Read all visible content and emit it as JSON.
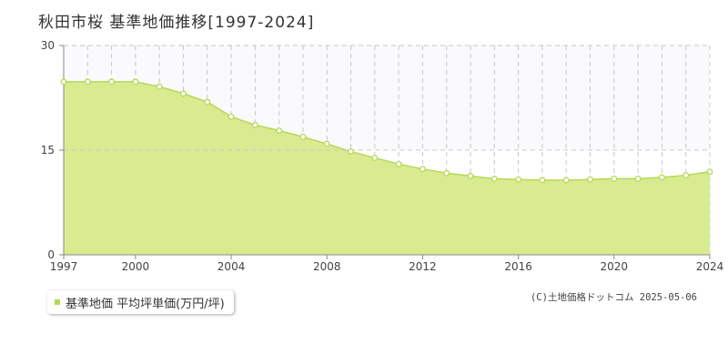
{
  "chart_data": {
    "type": "area",
    "title": "秋田市桜 基準地価推移[1997-2024]",
    "xlabel": "",
    "ylabel": "",
    "x": [
      1997,
      1998,
      1999,
      2000,
      2001,
      2002,
      2003,
      2004,
      2005,
      2006,
      2007,
      2008,
      2009,
      2010,
      2011,
      2012,
      2013,
      2014,
      2015,
      2016,
      2017,
      2018,
      2019,
      2020,
      2021,
      2022,
      2023,
      2024
    ],
    "xlim": [
      1997,
      2024
    ],
    "x_ticks": [
      "1997",
      "2000",
      "2004",
      "2008",
      "2012",
      "2016",
      "2020",
      "2024"
    ],
    "ylim": [
      0,
      30
    ],
    "y_ticks": [
      "0",
      "15",
      "30"
    ],
    "grid": true,
    "series": [
      {
        "name": "基準地価 平均坪単価(万円/坪)",
        "color": "#d9eb91",
        "line_color": "#b7d855",
        "values": [
          24.8,
          24.8,
          24.8,
          24.8,
          24.1,
          23.1,
          21.9,
          19.8,
          18.6,
          17.8,
          16.9,
          15.9,
          14.8,
          13.9,
          13.0,
          12.3,
          11.7,
          11.3,
          10.9,
          10.8,
          10.7,
          10.7,
          10.8,
          10.9,
          10.9,
          11.1,
          11.4,
          11.9
        ]
      }
    ],
    "legend_position": "bottom-left"
  },
  "copyright": "(C)土地価格ドットコム 2025-05-06"
}
